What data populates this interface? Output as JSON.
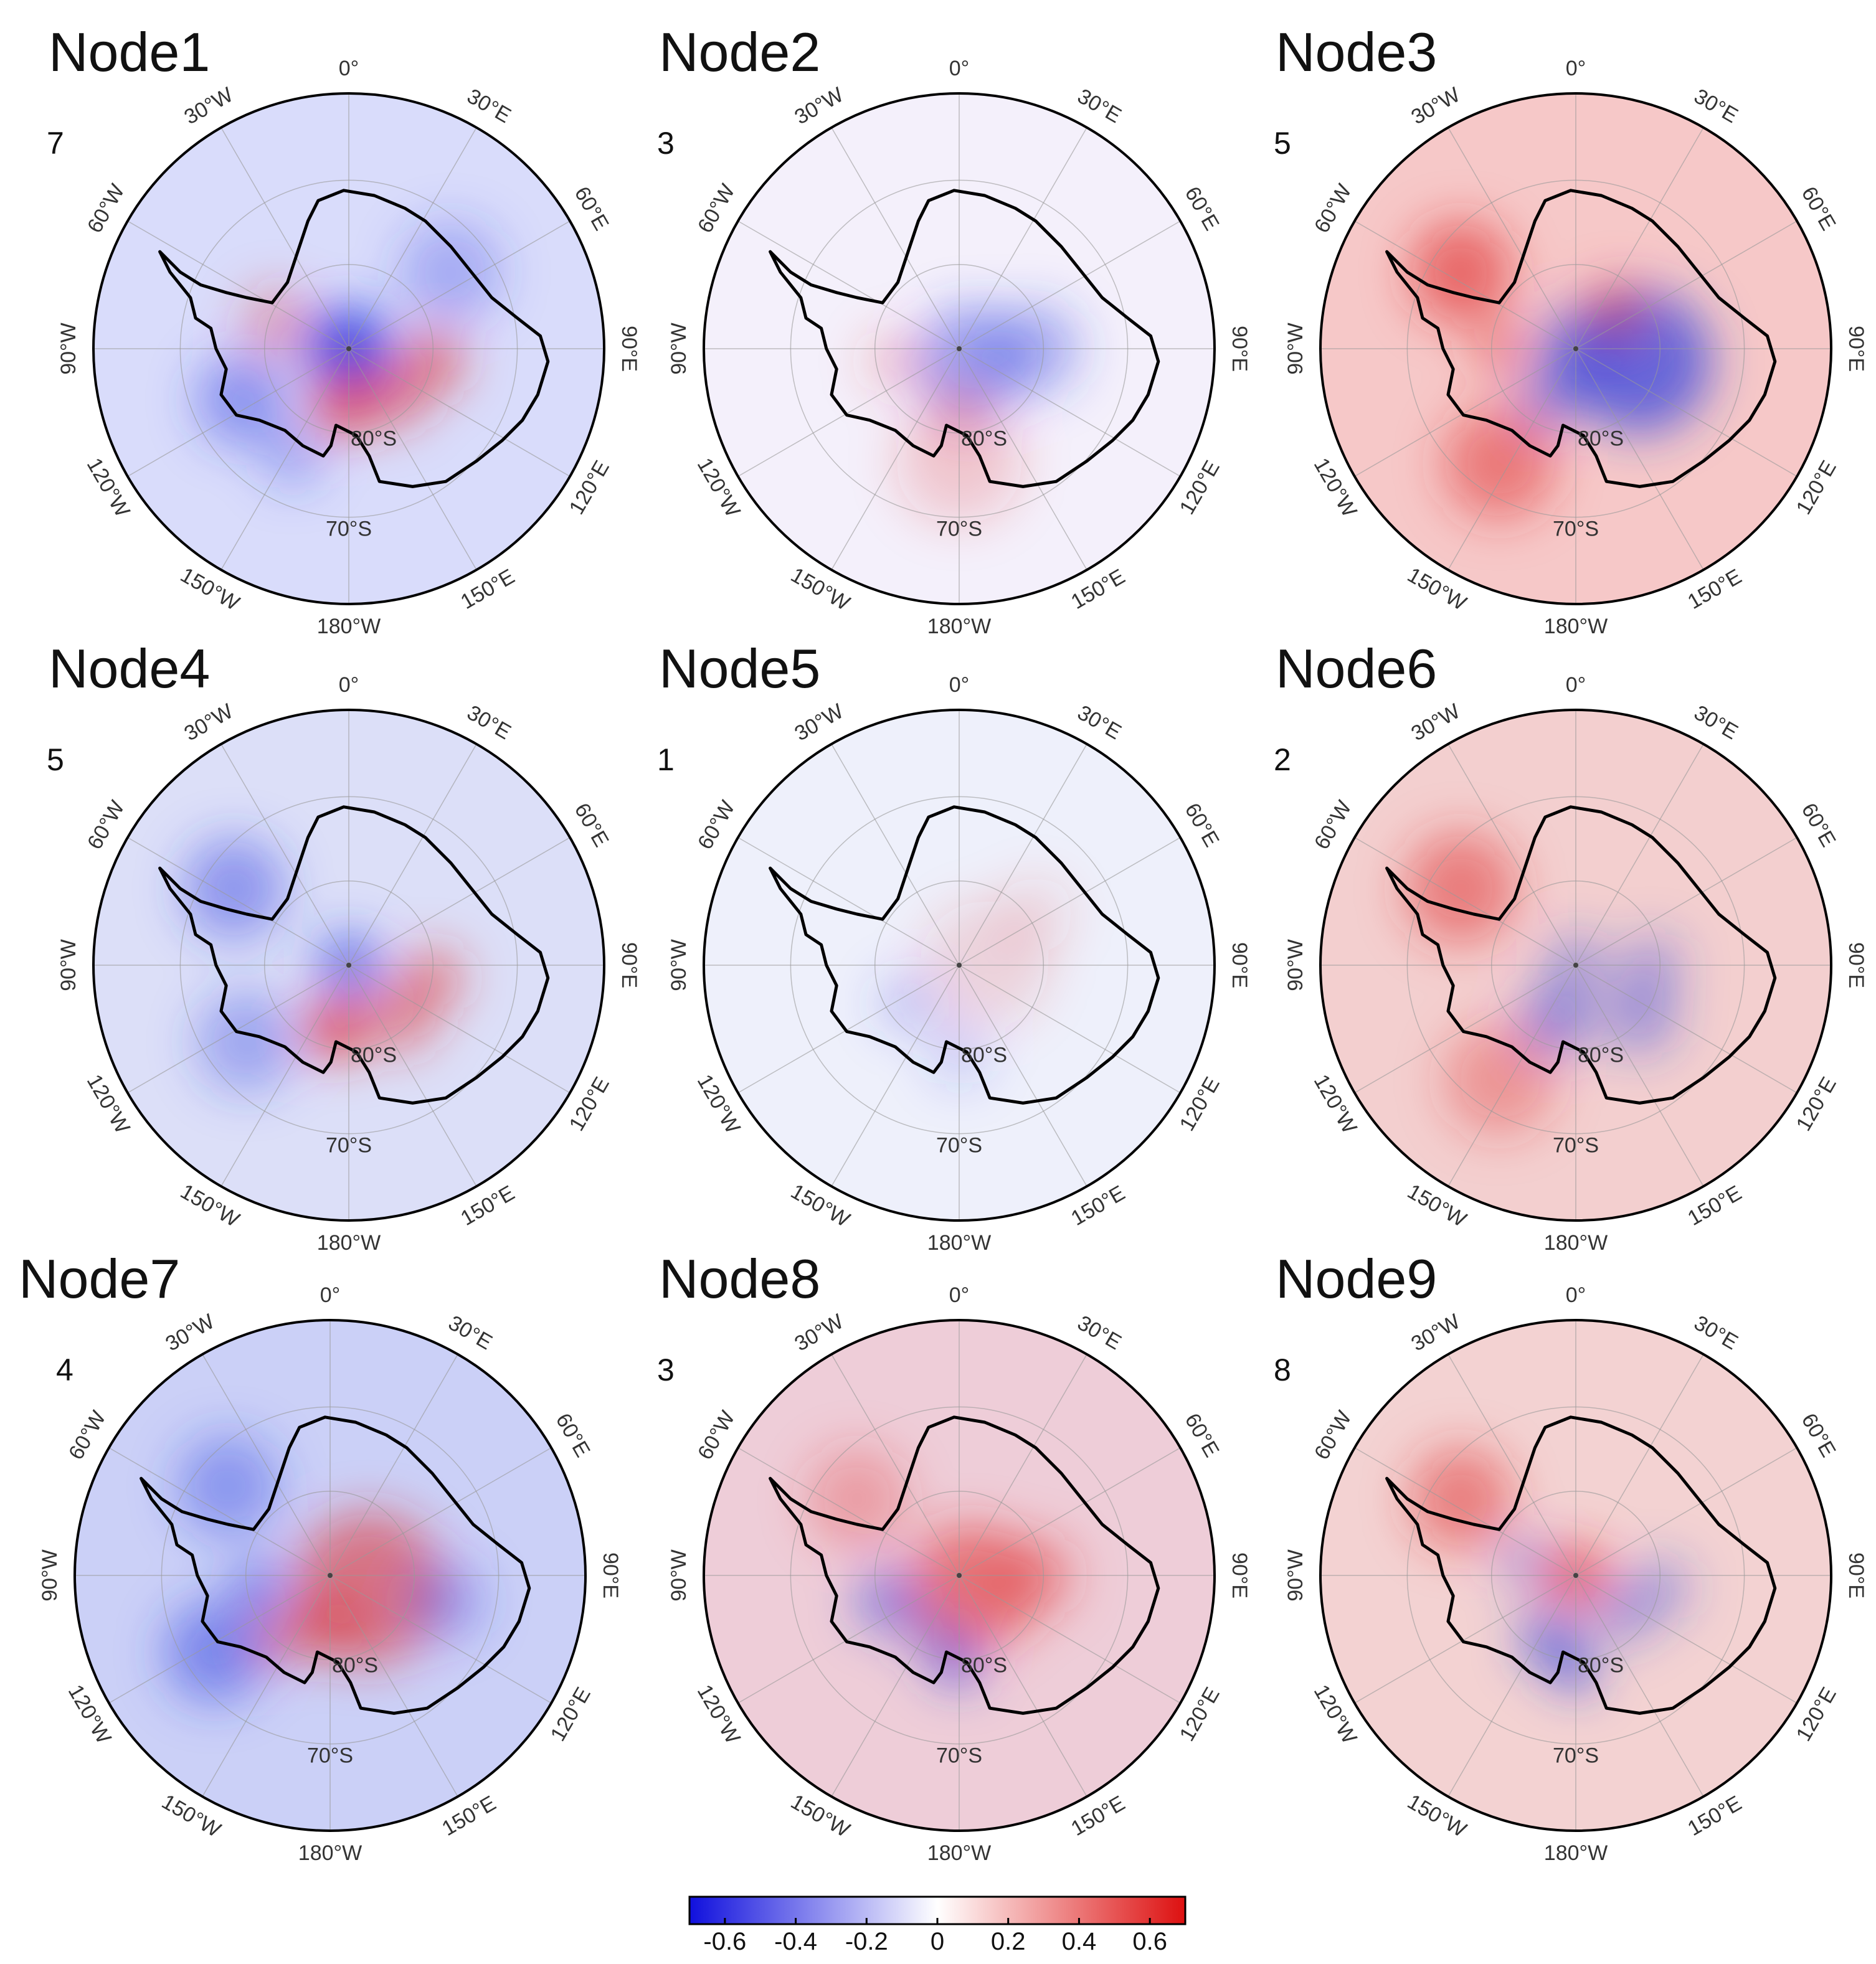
{
  "panels": [
    {
      "title": "Node1",
      "count": "7",
      "pattern": "n1"
    },
    {
      "title": "Node2",
      "count": "3",
      "pattern": "n2"
    },
    {
      "title": "Node3",
      "count": "5",
      "pattern": "n3"
    },
    {
      "title": "Node4",
      "count": "5",
      "pattern": "n4"
    },
    {
      "title": "Node5",
      "count": "1",
      "pattern": "n5"
    },
    {
      "title": "Node6",
      "count": "2",
      "pattern": "n6"
    },
    {
      "title": "Node7",
      "count": "4",
      "pattern": "n7"
    },
    {
      "title": "Node8",
      "count": "3",
      "pattern": "n8"
    },
    {
      "title": "Node9",
      "count": "8",
      "pattern": "n9"
    }
  ],
  "longitude_labels": [
    "0°",
    "30°E",
    "60°E",
    "90°E",
    "120°E",
    "150°E",
    "180°W",
    "150°W",
    "120°W",
    "90°W",
    "60°W",
    "30°W"
  ],
  "latitude_labels": [
    "80°S",
    "70°S"
  ],
  "colorbar": {
    "range": [
      -0.7,
      0.7
    ],
    "ticks": [
      "-0.6",
      "-0.4",
      "-0.2",
      "0",
      "0.2",
      "0.4",
      "0.6"
    ],
    "colors": {
      "negative": "#1010dd",
      "zero": "#ffffff",
      "positive": "#dd1010"
    }
  }
}
